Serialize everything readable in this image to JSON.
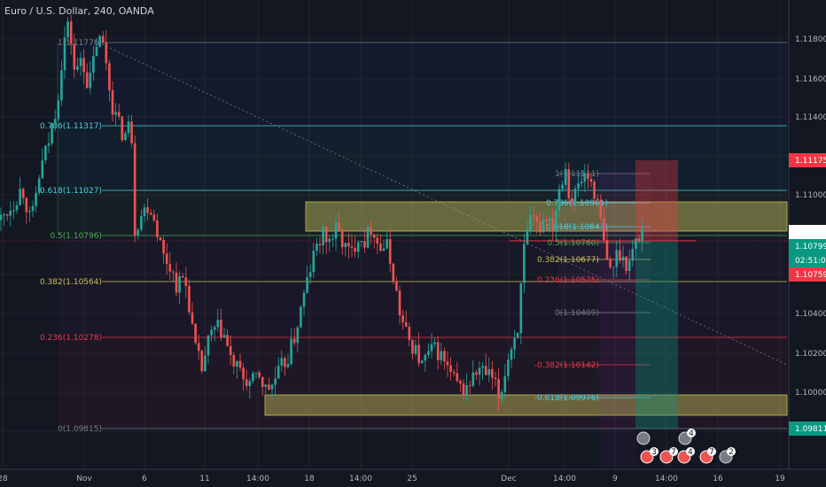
{
  "chart_title": "Euro / U.S. Dollar, 240, OANDA",
  "x_ticks": [
    "28",
    "Nov",
    "6",
    "11",
    "14:00",
    "18",
    "14:00",
    "25",
    "Dec",
    "14:00",
    "9",
    "14:00",
    "16",
    "19"
  ],
  "price_axis": {
    "ticks": [
      "1.11800",
      "1.11600",
      "1.11400",
      "1.11175",
      "1.11000",
      "1.10804",
      "1.10799",
      "02:51:03",
      "1.10759",
      "1.10400",
      "1.10200",
      "1.10000",
      "1.09811"
    ],
    "tags": [
      {
        "label": "1.11175",
        "color": "#f23645"
      },
      {
        "label": "1.10804",
        "color": "#ffffff",
        "text": "#131722"
      },
      {
        "label": "1.10799",
        "color": "#089981"
      },
      {
        "label": "02:51:03",
        "color": "#089981"
      },
      {
        "label": "1.10759",
        "color": "#f23645"
      },
      {
        "label": "1.09811",
        "color": "#089981"
      }
    ]
  },
  "fib_left": {
    "labels": [
      "1(1.11776)",
      "0.786(1.11317)",
      "0.618(1.11027)",
      "0.5(1.10796)",
      "0.382(1.10564)",
      "0.236(1.10278)",
      "0(1.09815)"
    ],
    "colors": [
      "#787b86",
      "#4dd0e1",
      "#4dd0e1",
      "#4caf50",
      "#c9c15b",
      "#f23645",
      "#787b86"
    ]
  },
  "fib_right": {
    "labels": [
      "1(1.11111)",
      "0.786(1.10961)",
      "0.618(1.10843)",
      "0.5(1.10760)",
      "0.382(1.10677)",
      "0.236(1.10575)",
      "0(1.10409)",
      "-0.382(1.10142)",
      "-0.618(1.09976)"
    ],
    "colors": [
      "#787b86",
      "#4dd0e1",
      "#4dd0e1",
      "#4caf50",
      "#c9c15b",
      "#f23645",
      "#787b86",
      "#f23645",
      "#4dd0e1"
    ]
  },
  "event_badges": [
    "4",
    "3",
    "7",
    "4",
    "7",
    "2"
  ],
  "colors": {
    "up": "#26a69a",
    "down": "#ef5350",
    "zone": "#c9c15b",
    "bg": "#131722"
  },
  "chart_data": {
    "type": "candlestick",
    "symbol": "Euro / U.S. Dollar",
    "interval": "240",
    "source": "OANDA",
    "ylim": [
      1.0962,
      1.1188
    ],
    "x_tick_labels": [
      "28",
      "Nov",
      "6",
      "11",
      "14:00",
      "18",
      "14:00",
      "25",
      "Dec",
      "14:00",
      "9",
      "14:00",
      "16",
      "19"
    ],
    "price_path": [
      [
        0,
        1.1082
      ],
      [
        15,
        1.109
      ],
      [
        25,
        1.1098
      ],
      [
        35,
        1.108
      ],
      [
        45,
        1.1105
      ],
      [
        55,
        1.112
      ],
      [
        65,
        1.114
      ],
      [
        72,
        1.1168
      ],
      [
        78,
        1.1177
      ],
      [
        85,
        1.115
      ],
      [
        92,
        1.1162
      ],
      [
        100,
        1.1145
      ],
      [
        110,
        1.117
      ],
      [
        118,
        1.1165
      ],
      [
        125,
        1.114
      ],
      [
        132,
        1.113
      ],
      [
        140,
        1.1122
      ],
      [
        148,
        1.113
      ],
      [
        152,
        1.1078
      ],
      [
        160,
        1.1085
      ],
      [
        168,
        1.109
      ],
      [
        176,
        1.108
      ],
      [
        184,
        1.1065
      ],
      [
        192,
        1.106
      ],
      [
        200,
        1.105
      ],
      [
        208,
        1.1055
      ],
      [
        214,
        1.104
      ],
      [
        220,
        1.102
      ],
      [
        228,
        1.101
      ],
      [
        236,
        1.1025
      ],
      [
        244,
        1.103
      ],
      [
        252,
        1.1028
      ],
      [
        260,
        1.1015
      ],
      [
        268,
        1.101
      ],
      [
        276,
        1.1005
      ],
      [
        284,
        1.1003
      ],
      [
        292,
        1.1008
      ],
      [
        300,
        1.1
      ],
      [
        308,
        1.1003
      ],
      [
        316,
        1.101
      ],
      [
        324,
        1.1015
      ],
      [
        332,
        1.1025
      ],
      [
        340,
        1.104
      ],
      [
        348,
        1.1055
      ],
      [
        356,
        1.1068
      ],
      [
        364,
        1.1075
      ],
      [
        372,
        1.1072
      ],
      [
        380,
        1.1078
      ],
      [
        388,
        1.107
      ],
      [
        396,
        1.1065
      ],
      [
        404,
        1.1075
      ],
      [
        412,
        1.1072
      ],
      [
        420,
        1.108
      ],
      [
        428,
        1.1068
      ],
      [
        436,
        1.107
      ],
      [
        444,
        1.1055
      ],
      [
        452,
        1.1035
      ],
      [
        460,
        1.1025
      ],
      [
        468,
        1.102
      ],
      [
        476,
        1.1012
      ],
      [
        484,
        1.1018
      ],
      [
        492,
        1.102
      ],
      [
        500,
        1.1015
      ],
      [
        508,
        1.1008
      ],
      [
        516,
        1.1002
      ],
      [
        524,
        1.1
      ],
      [
        532,
        1.1005
      ],
      [
        540,
        1.101
      ],
      [
        548,
        1.1008
      ],
      [
        556,
        1.1005
      ],
      [
        564,
        1.0995
      ],
      [
        570,
        1.101
      ],
      [
        576,
        1.102
      ],
      [
        584,
        1.103
      ],
      [
        592,
        1.107
      ],
      [
        600,
        1.1082
      ],
      [
        608,
        1.1078
      ],
      [
        616,
        1.1085
      ],
      [
        624,
        1.108
      ],
      [
        632,
        1.11
      ],
      [
        638,
        1.1108
      ],
      [
        644,
        1.109
      ],
      [
        652,
        1.1098
      ],
      [
        660,
        1.1104
      ],
      [
        668,
        1.11
      ],
      [
        674,
        1.109
      ],
      [
        680,
        1.1075
      ],
      [
        686,
        1.1058
      ],
      [
        692,
        1.106
      ],
      [
        698,
        1.1068
      ],
      [
        704,
        1.1062
      ],
      [
        710,
        1.1062
      ],
      [
        716,
        1.107
      ],
      [
        722,
        1.1075
      ],
      [
        728,
        1.108
      ]
    ],
    "levels": {
      "fib_left": {
        "1": 1.11776,
        "0.786": 1.11317,
        "0.618": 1.11027,
        "0.5": 1.10796,
        "0.382": 1.10564,
        "0.236": 1.10278,
        "0": 1.09815
      },
      "fib_right": {
        "1": 1.11111,
        "0.786": 1.10961,
        "0.618": 1.10843,
        "0.5": 1.1076,
        "0.382": 1.10677,
        "0.236": 1.10575,
        "0": 1.10409,
        "-0.382": 1.10142,
        "-0.618": 1.09976
      },
      "resistance_zone": [
        1.1081,
        1.1097
      ],
      "support_zone": [
        1.0988,
        1.0998
      ],
      "last_price": 1.10799,
      "short_position": {
        "entry": 1.10799,
        "stop": 1.11175,
        "target": 1.09811
      }
    }
  }
}
